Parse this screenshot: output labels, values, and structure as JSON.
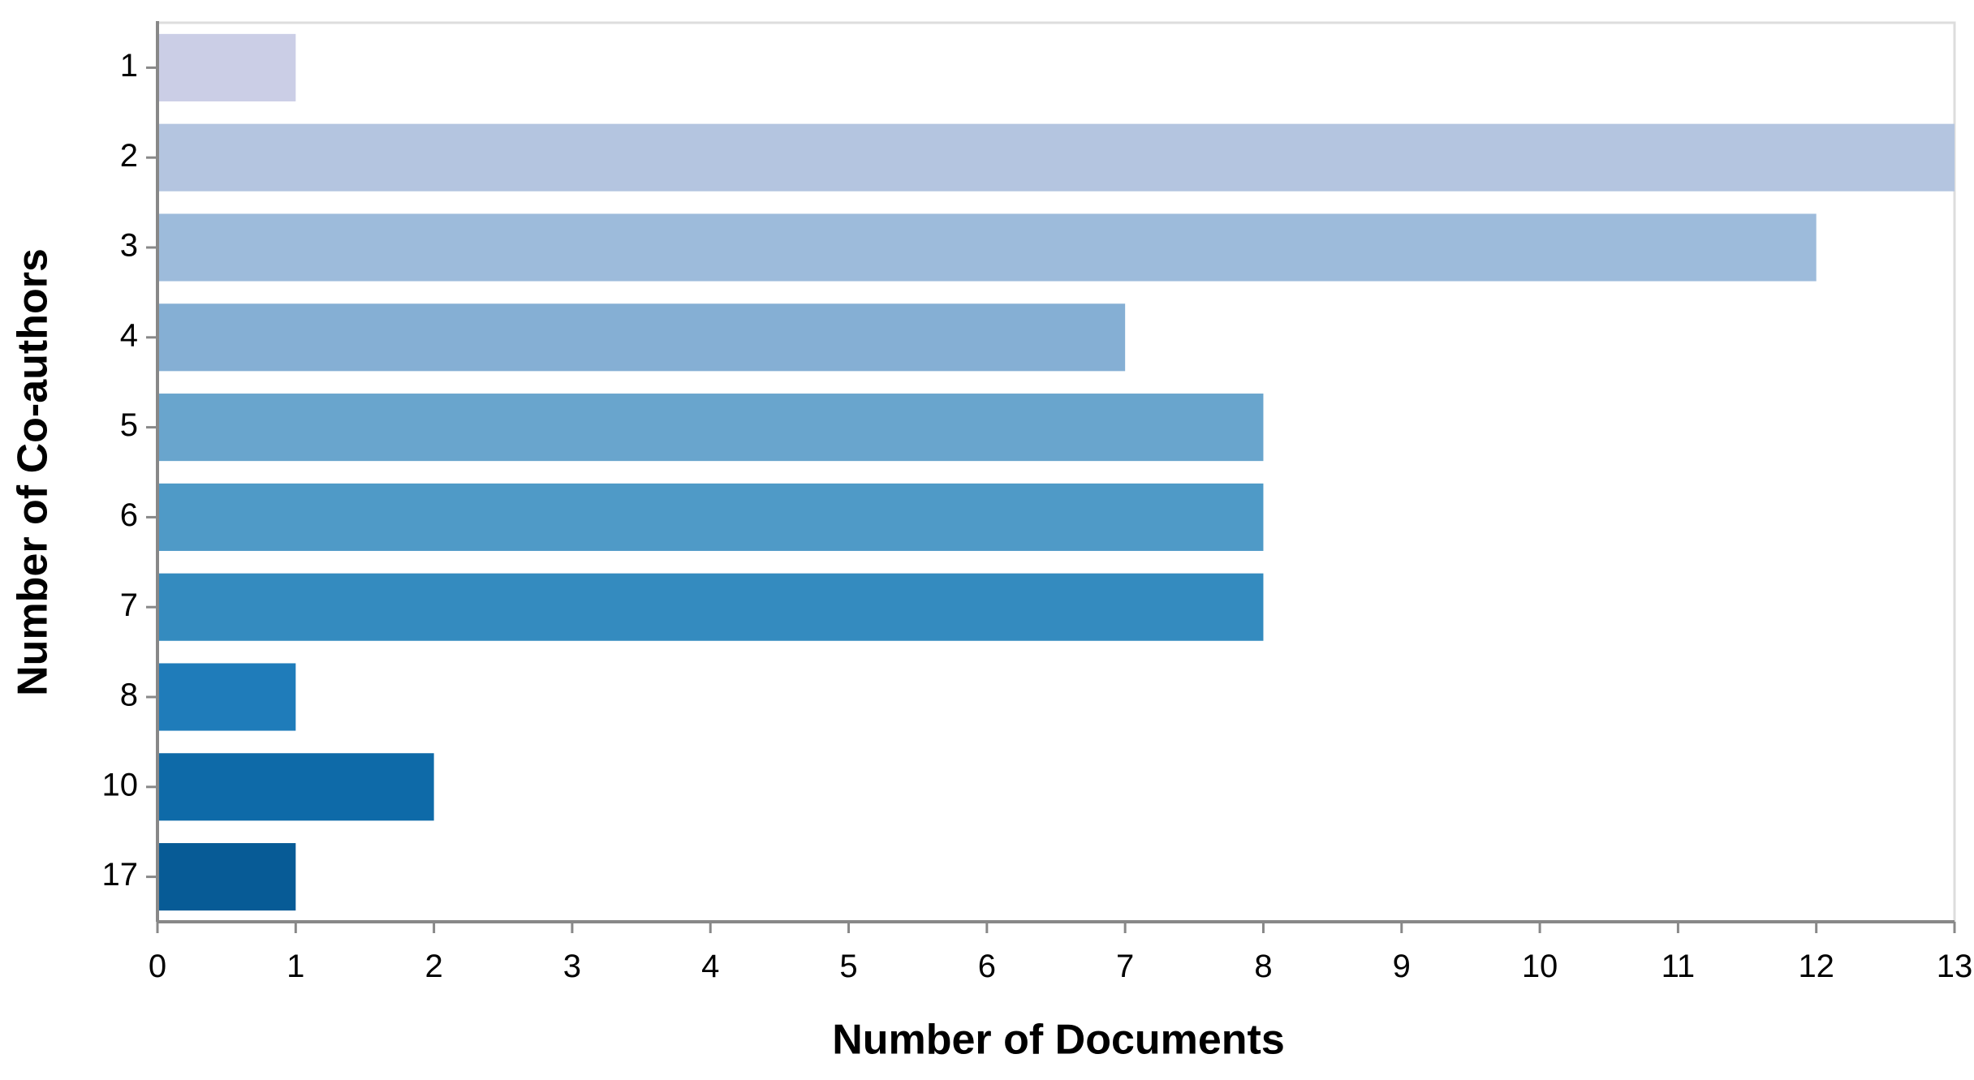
{
  "chart_data": {
    "type": "bar",
    "orientation": "horizontal",
    "x_label": "Number of Documents",
    "y_label": "Number of Co-authors",
    "categories": [
      "1",
      "2",
      "3",
      "4",
      "5",
      "6",
      "7",
      "8",
      "10",
      "17"
    ],
    "values": [
      1,
      13,
      12,
      7,
      8,
      8,
      8,
      1,
      2,
      1
    ],
    "colors": [
      "#cbcee6",
      "#b4c5e0",
      "#9dbbdb",
      "#85afd4",
      "#69a5cd",
      "#4f9ac7",
      "#348bbf",
      "#1f7cba",
      "#0e6aa8",
      "#075b96"
    ],
    "xlim": [
      0,
      13
    ],
    "xticks": [
      0,
      1,
      2,
      3,
      4,
      5,
      6,
      7,
      8,
      9,
      10,
      11,
      12,
      13
    ],
    "grid": false
  }
}
